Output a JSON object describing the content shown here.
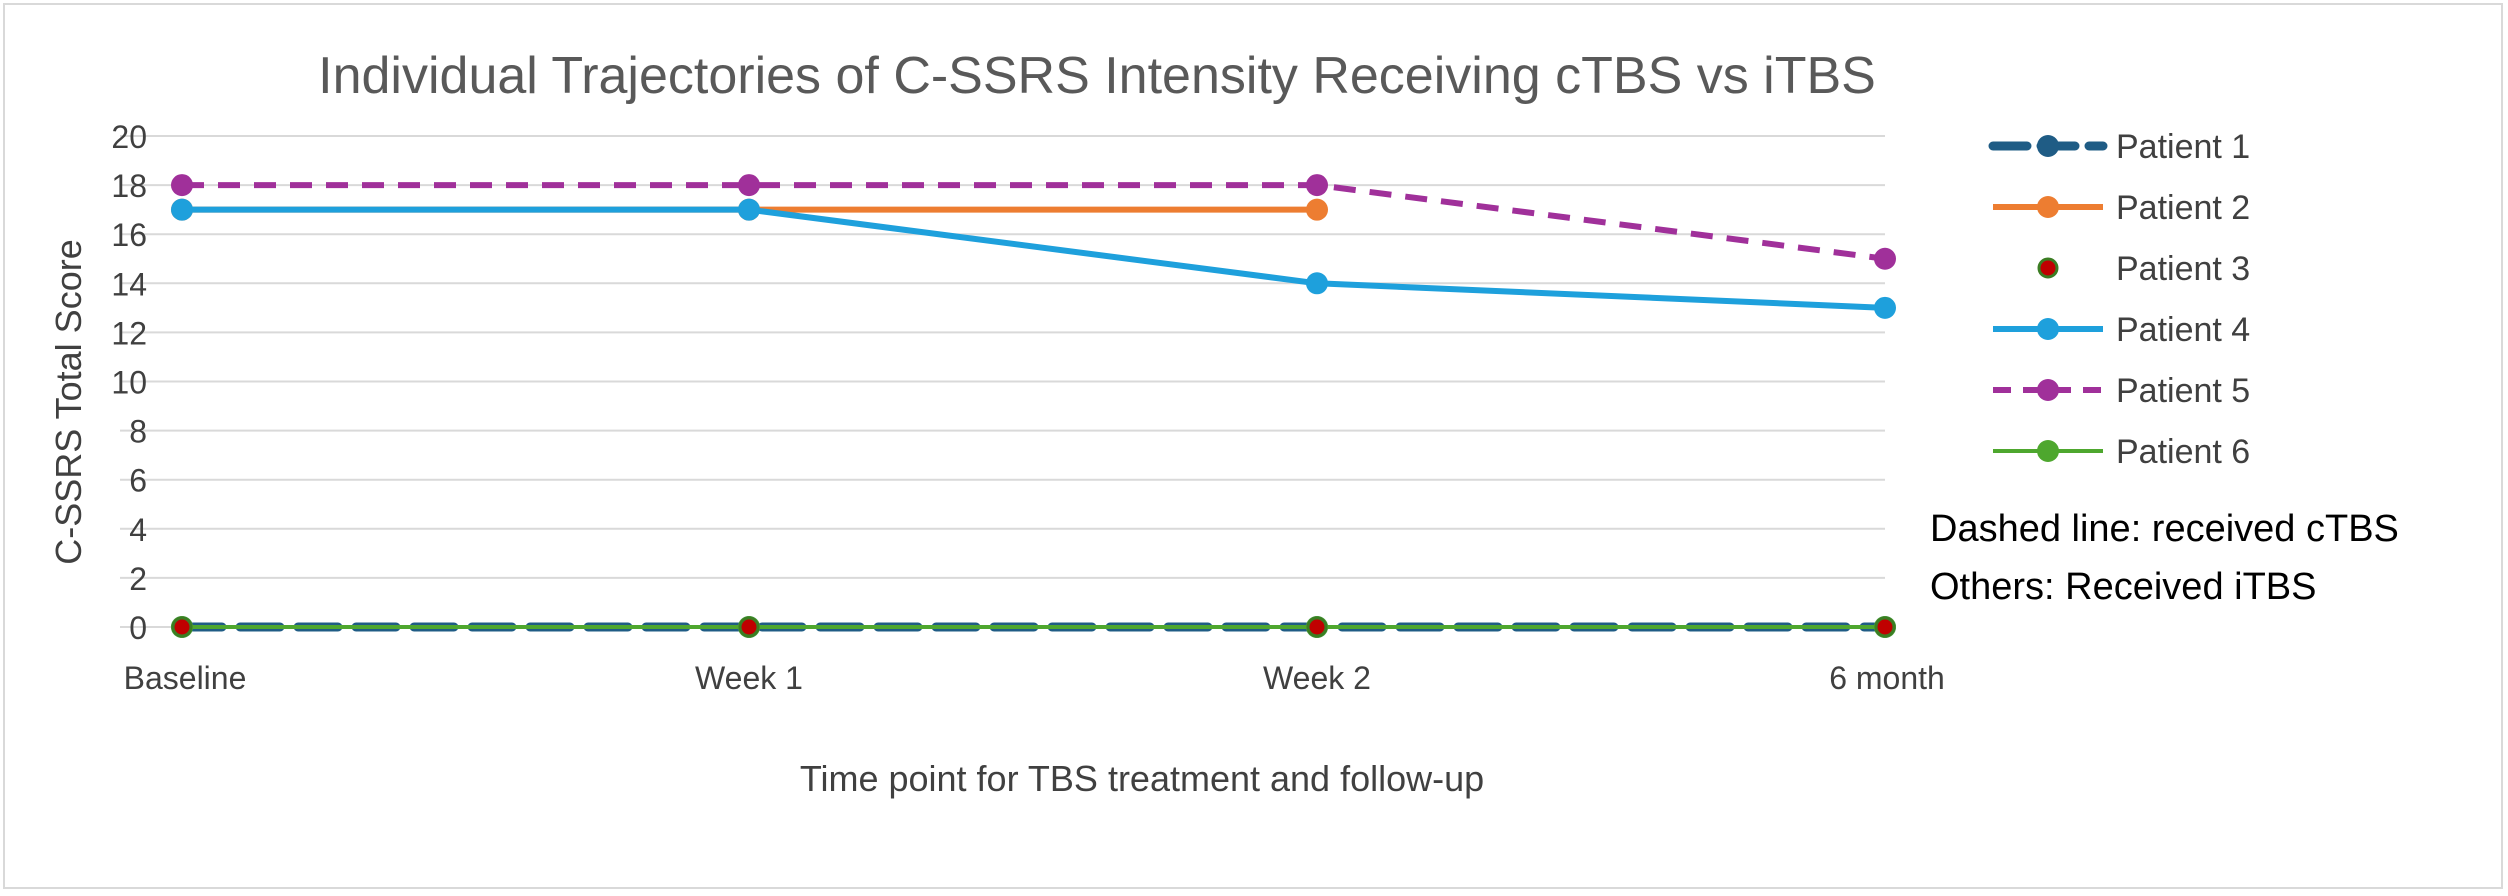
{
  "chart_data": {
    "type": "line",
    "title": "Individual Trajectories of C-SSRS Intensity Receiving cTBS vs iTBS",
    "xlabel": "Time point for TBS treatment and follow-up",
    "ylabel": "C-SSRS Total Score",
    "categories": [
      "Baseline",
      "Week 1",
      "Week 2",
      "6 month"
    ],
    "ylim": [
      0,
      20
    ],
    "yticks": [
      0,
      2,
      4,
      6,
      8,
      10,
      12,
      14,
      16,
      18,
      20
    ],
    "ytick_labels": [
      "0",
      "2",
      "4",
      "6",
      "8",
      "10",
      "12",
      "14",
      "16",
      "18",
      "20"
    ],
    "grid": true,
    "legend_position": "right",
    "series": [
      {
        "name": "Patient 1",
        "values": [
          0,
          0,
          0,
          0
        ],
        "color": "#1f5c85",
        "dashed": true,
        "marker_color": "#1f5c85",
        "stroke_width": 9
      },
      {
        "name": "Patient 2",
        "values": [
          17,
          17,
          17,
          null
        ],
        "color": "#ed7d31",
        "dashed": false,
        "marker_color": "#ed7d31",
        "stroke_width": 6
      },
      {
        "name": "Patient 3",
        "values": [
          0,
          0,
          0,
          0
        ],
        "color": null,
        "dashed": false,
        "marker_color": "#c00000",
        "marker_edge": "#3b7d23",
        "stroke_width": 0
      },
      {
        "name": "Patient 4",
        "values": [
          17,
          17,
          14,
          13
        ],
        "color": "#1ea0dc",
        "dashed": false,
        "marker_color": "#1ea0dc",
        "stroke_width": 6
      },
      {
        "name": "Patient 5",
        "values": [
          18,
          18,
          18,
          15
        ],
        "color": "#a0309a",
        "dashed": true,
        "marker_color": "#a0309a",
        "stroke_width": 6
      },
      {
        "name": "Patient 6",
        "values": [
          0,
          0,
          0,
          0
        ],
        "color": "#4ea72e",
        "dashed": false,
        "marker_color": "#4ea72e",
        "stroke_width": 4
      }
    ],
    "annotations": [
      "Dashed line: received cTBS",
      "Others: Received iTBS"
    ]
  }
}
